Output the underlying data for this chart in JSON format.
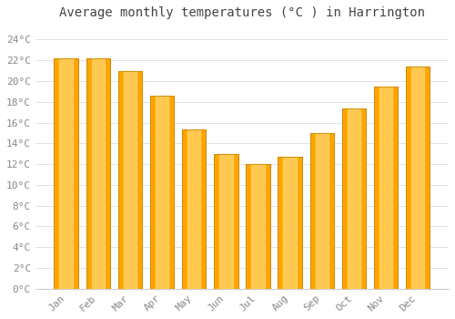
{
  "title": "Average monthly temperatures (°C ) in Harrington",
  "months": [
    "Jan",
    "Feb",
    "Mar",
    "Apr",
    "May",
    "Jun",
    "Jul",
    "Aug",
    "Sep",
    "Oct",
    "Nov",
    "Dec"
  ],
  "values": [
    22.2,
    22.2,
    21.0,
    18.6,
    15.3,
    13.0,
    12.0,
    12.7,
    15.0,
    17.4,
    19.5,
    21.4
  ],
  "bar_color_main": "#FFA500",
  "bar_color_highlight": "#FFD060",
  "bar_edge_color": "#CC8800",
  "background_color": "#FFFFFF",
  "plot_bg_color": "#FFFFFF",
  "grid_color": "#E0E0E8",
  "text_color": "#888888",
  "title_color": "#444444",
  "yticks": [
    0,
    2,
    4,
    6,
    8,
    10,
    12,
    14,
    16,
    18,
    20,
    22,
    24
  ],
  "ylim": [
    0,
    25.5
  ],
  "title_fontsize": 10,
  "tick_fontsize": 8,
  "font_family": "monospace",
  "bar_width": 0.75
}
